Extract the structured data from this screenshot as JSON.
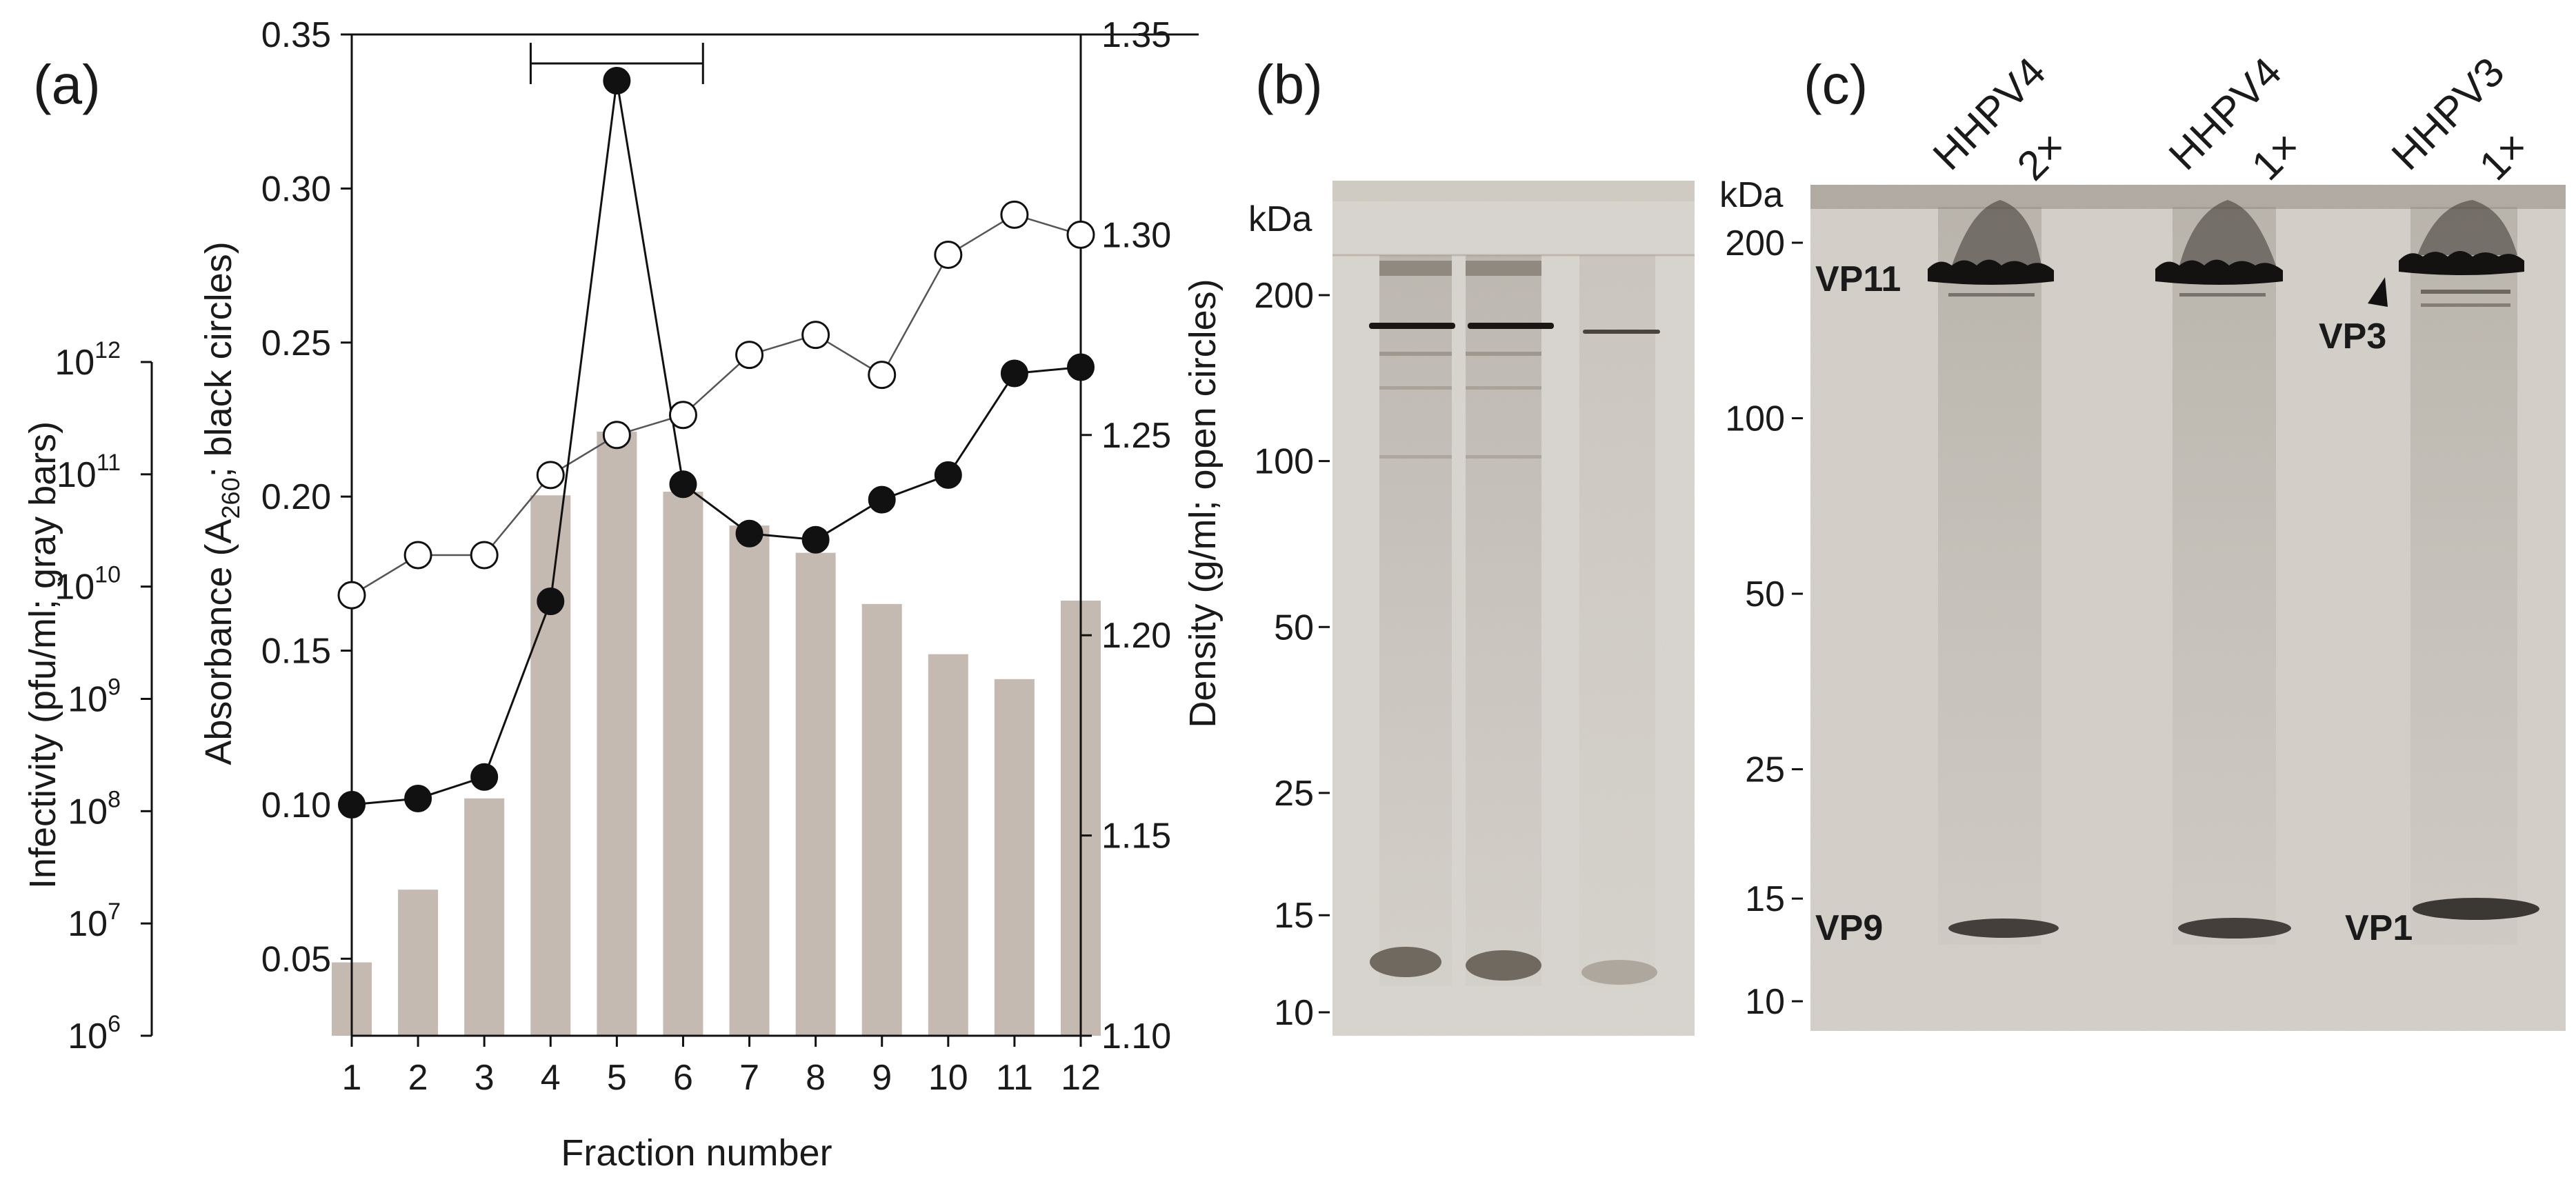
{
  "chart_data": [
    {
      "panel_label": "(a)",
      "type": "bar",
      "xlabel": "Fraction number",
      "categories": [
        "1",
        "2",
        "3",
        "4",
        "5",
        "6",
        "7",
        "8",
        "9",
        "10",
        "11",
        "12"
      ],
      "axes": {
        "infectivity": {
          "label": "Infectivity (pfu/ml; gray bars)",
          "scale": "log",
          "range": [
            1000000,
            1000000000000
          ],
          "ticks": [
            {
              "base": "10",
              "exp": "6"
            },
            {
              "base": "10",
              "exp": "7"
            },
            {
              "base": "10",
              "exp": "8"
            },
            {
              "base": "10",
              "exp": "9"
            },
            {
              "base": "10",
              "exp": "10"
            },
            {
              "base": "10",
              "exp": "11"
            },
            {
              "base": "10",
              "exp": "12"
            }
          ]
        },
        "absorbance": {
          "label_pre": "Absorbance (A",
          "label_sub": "260",
          "label_post": "; black circles)",
          "range": [
            0.025,
            0.35
          ],
          "ticks": [
            "0.05",
            "0.10",
            "0.15",
            "0.20",
            "0.25",
            "0.30",
            "0.35"
          ]
        },
        "density": {
          "label": "Density (g/ml; open circles)",
          "range": [
            1.1,
            1.35
          ],
          "ticks": [
            "1.10",
            "1.15",
            "1.20",
            "1.25",
            "1.30",
            "1.35"
          ]
        }
      },
      "series": [
        {
          "type": "bar",
          "axis": "infectivity",
          "values": [
            4500000.0,
            20000000.0,
            130000000.0,
            65000000000.0,
            240000000000.0,
            70000000000.0,
            35000000000.0,
            20000000000.0,
            7000000000.0,
            2500000000.0,
            1500000000.0,
            7500000000.0
          ]
        },
        {
          "type": "line",
          "axis": "absorbance",
          "marker": "filled",
          "values": [
            0.1,
            0.102,
            0.109,
            0.166,
            0.335,
            0.204,
            0.188,
            0.186,
            0.199,
            0.207,
            0.24,
            0.242
          ]
        },
        {
          "type": "line",
          "axis": "density",
          "marker": "open",
          "values": [
            1.21,
            1.22,
            1.22,
            1.24,
            1.25,
            1.255,
            1.27,
            1.275,
            1.265,
            1.295,
            1.305,
            1.3
          ]
        }
      ],
      "annotations": {
        "bracket_fractions": [
          3.7,
          6.3
        ]
      },
      "colors": {
        "bars": "#c4bab2",
        "black_markers": "#111111",
        "open_markers": "#ffffff"
      }
    },
    {
      "panel_label": "(b)",
      "type": "gel",
      "marker_header": "kDa",
      "marker_ticks": [
        "200",
        "100",
        "50",
        "25",
        "15",
        "10"
      ],
      "marker_kda": [
        200,
        100,
        50,
        25,
        15,
        10
      ]
    },
    {
      "panel_label": "(c)",
      "type": "gel",
      "marker_header": "kDa",
      "marker_ticks": [
        "200",
        "100",
        "50",
        "25",
        "15",
        "10"
      ],
      "marker_kda": [
        200,
        100,
        50,
        25,
        15,
        10
      ],
      "lanes": [
        {
          "name": "HHPV4",
          "load": "2×"
        },
        {
          "name": "HHPV4",
          "load": "1×"
        },
        {
          "name": "HHPV3",
          "load": "1×"
        }
      ],
      "band_labels": [
        "VP11",
        "VP3",
        "VP9",
        "VP1"
      ]
    }
  ]
}
